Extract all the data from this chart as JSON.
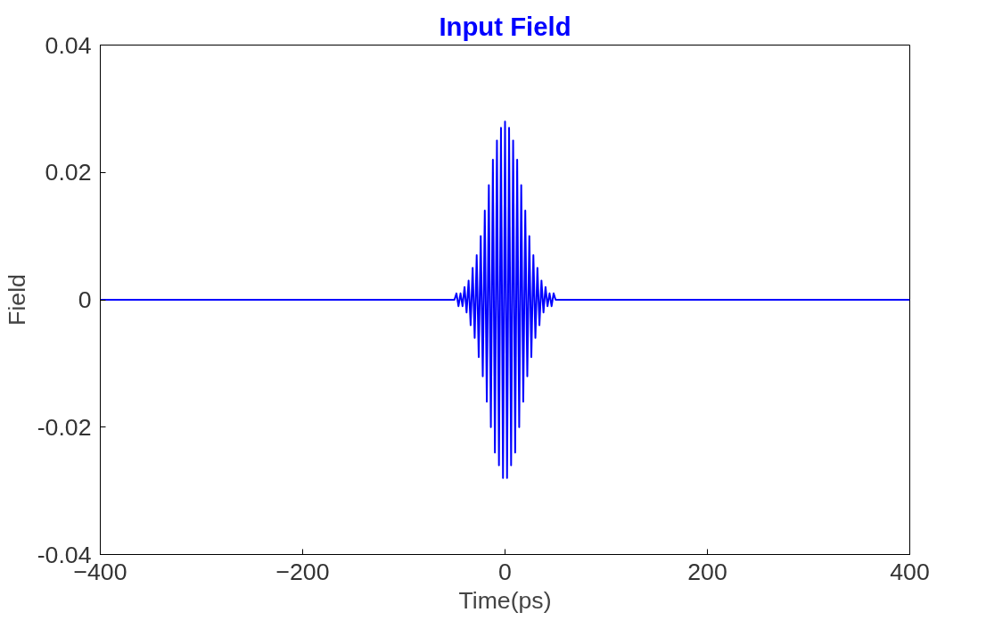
{
  "chart_data": {
    "type": "line",
    "title": "Input Field",
    "xlabel": "Time(ps)",
    "ylabel": "Field",
    "x": [
      -400,
      -60,
      -50,
      -48,
      -46,
      -44,
      -42,
      -40,
      -38,
      -36,
      -34,
      -32,
      -30,
      -28,
      -26,
      -24,
      -22,
      -20,
      -18,
      -16,
      -14,
      -12,
      -10,
      -8,
      -6,
      -4,
      -2,
      0,
      2,
      4,
      6,
      8,
      10,
      12,
      14,
      16,
      18,
      20,
      22,
      24,
      26,
      28,
      30,
      32,
      34,
      36,
      38,
      40,
      42,
      44,
      46,
      48,
      50,
      60,
      400
    ],
    "series": [
      {
        "color": "#0000ff",
        "values": [
          0,
          0,
          0,
          0.001,
          -0.001,
          0.001,
          -0.001,
          0.002,
          -0.002,
          0.003,
          -0.004,
          0.005,
          -0.006,
          0.007,
          -0.009,
          0.01,
          -0.012,
          0.014,
          -0.016,
          0.018,
          -0.02,
          0.022,
          -0.024,
          0.025,
          -0.026,
          0.027,
          -0.028,
          0.028,
          -0.028,
          0.027,
          -0.026,
          0.025,
          -0.024,
          0.022,
          -0.02,
          0.018,
          -0.016,
          0.014,
          -0.012,
          0.01,
          -0.009,
          0.007,
          -0.006,
          0.005,
          -0.004,
          0.003,
          -0.002,
          0.002,
          -0.001,
          0.001,
          -0.001,
          0.001,
          0,
          0,
          0
        ]
      }
    ],
    "xlim": [
      -400,
      400
    ],
    "ylim": [
      -0.04,
      0.04
    ],
    "xticks": [
      -400,
      -200,
      0,
      200,
      400
    ],
    "yticks": [
      {
        "value": -0.04,
        "label": "-0.04"
      },
      {
        "value": -0.02,
        "label": "-0.02"
      },
      {
        "value": 0,
        "label": "0"
      },
      {
        "value": 0.02,
        "label": "0.02"
      },
      {
        "value": 0.04,
        "label": "0.04"
      }
    ],
    "grid": false,
    "line_style": "solid"
  }
}
